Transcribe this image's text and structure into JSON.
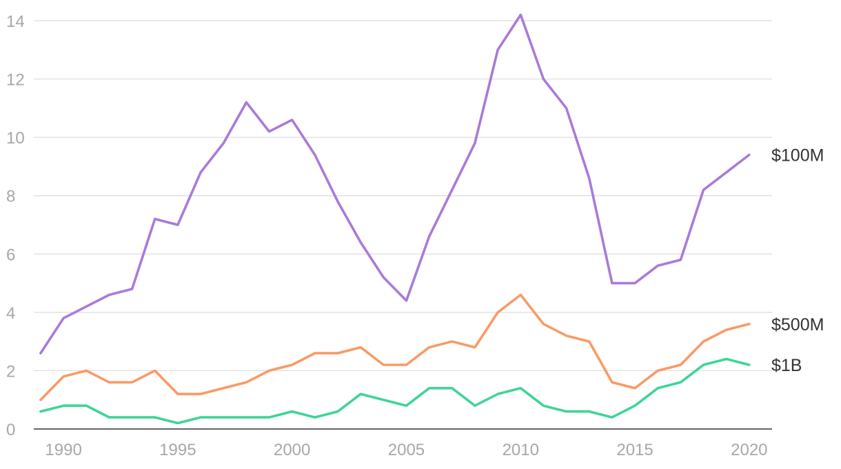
{
  "chart_data": {
    "type": "line",
    "title": "",
    "xlabel": "",
    "ylabel": "",
    "xlim": [
      1988.7,
      2021
    ],
    "ylim": [
      0,
      14
    ],
    "x_ticks": [
      1990,
      1995,
      2000,
      2005,
      2010,
      2015,
      2020
    ],
    "y_ticks": [
      0,
      2,
      4,
      6,
      8,
      10,
      12,
      14
    ],
    "grid": "horizontal",
    "x": [
      1989,
      1990,
      1991,
      1992,
      1993,
      1994,
      1995,
      1996,
      1997,
      1998,
      1999,
      2000,
      2001,
      2002,
      2003,
      2004,
      2005,
      2006,
      2007,
      2008,
      2009,
      2010,
      2011,
      2012,
      2013,
      2014,
      2015,
      2016,
      2017,
      2018,
      2019,
      2020
    ],
    "series": [
      {
        "name": "$100M",
        "color": "#a97ad9",
        "values": [
          2.6,
          3.8,
          4.2,
          4.6,
          4.8,
          7.2,
          7.0,
          8.8,
          9.8,
          11.2,
          10.2,
          10.6,
          9.4,
          7.8,
          6.4,
          5.2,
          4.4,
          6.6,
          8.2,
          9.8,
          13.0,
          14.2,
          12.0,
          11.0,
          8.6,
          5.0,
          5.0,
          5.6,
          5.8,
          8.2,
          8.8,
          9.4
        ]
      },
      {
        "name": "$500M",
        "color": "#f99a66",
        "values": [
          1.0,
          1.8,
          2.0,
          1.6,
          1.6,
          2.0,
          1.2,
          1.2,
          1.4,
          1.6,
          2.0,
          2.2,
          2.6,
          2.6,
          2.8,
          2.2,
          2.2,
          2.8,
          3.0,
          2.8,
          4.0,
          4.6,
          3.6,
          3.2,
          3.0,
          1.6,
          1.4,
          2.0,
          2.2,
          3.0,
          3.4,
          3.6
        ]
      },
      {
        "name": "$1B",
        "color": "#3ed596",
        "values": [
          0.6,
          0.8,
          0.8,
          0.4,
          0.4,
          0.4,
          0.2,
          0.4,
          0.4,
          0.4,
          0.4,
          0.6,
          0.4,
          0.6,
          1.2,
          1.0,
          0.8,
          1.4,
          1.4,
          0.8,
          1.2,
          1.4,
          0.8,
          0.6,
          0.6,
          0.4,
          0.8,
          1.4,
          1.6,
          2.2,
          2.4,
          2.2
        ]
      }
    ]
  }
}
